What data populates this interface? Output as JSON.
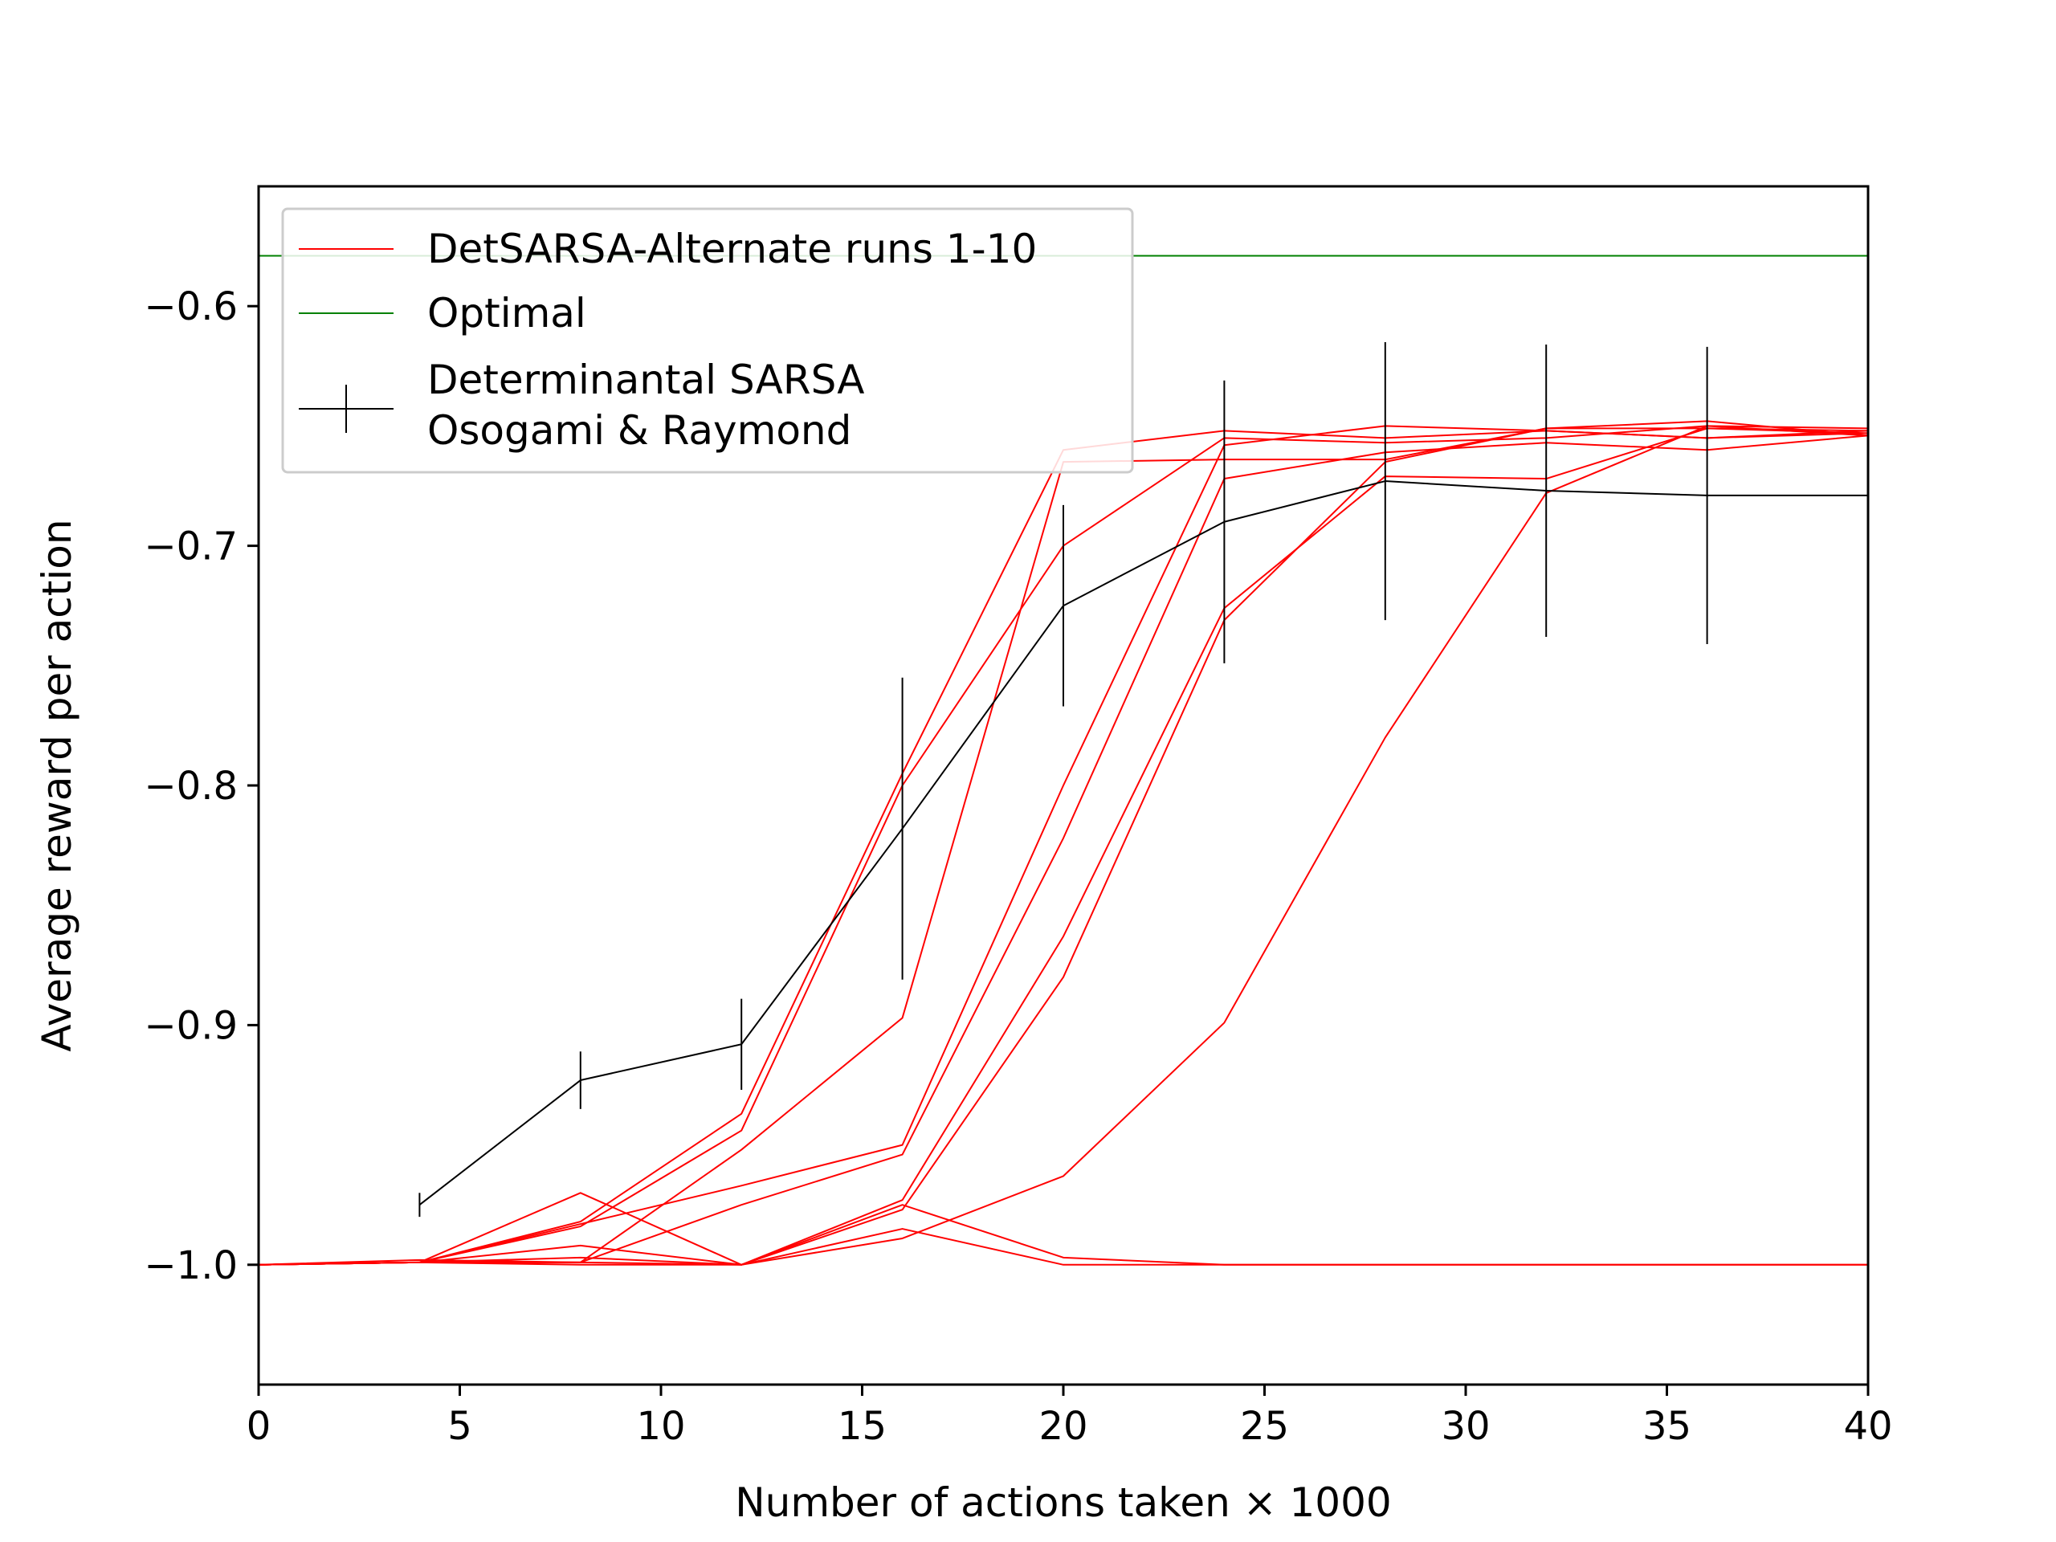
{
  "chart_data": {
    "type": "line",
    "title": "",
    "xlabel": "Number of actions taken × 1000",
    "ylabel": "Average reward per action",
    "xlim": [
      0,
      40
    ],
    "ylim": [
      -1.05,
      -0.55
    ],
    "xticks": [
      0,
      5,
      10,
      15,
      20,
      25,
      30,
      35,
      40
    ],
    "xtick_labels": [
      "0",
      "5",
      "10",
      "15",
      "20",
      "25",
      "30",
      "35",
      "40"
    ],
    "yticks": [
      -1.0,
      -0.9,
      -0.8,
      -0.7,
      -0.6
    ],
    "ytick_labels": [
      "−1.0",
      "−0.9",
      "−0.8",
      "−0.7",
      "−0.6"
    ],
    "grid": false,
    "legend_position": "top-left",
    "legend": [
      {
        "label": "DetSARSA-Alternate runs 1-10",
        "color": "#ff0000",
        "style": "line"
      },
      {
        "label": "Optimal",
        "color": "#008000",
        "style": "line"
      },
      {
        "label": "Determinantal SARSA",
        "label2": "Osogami & Raymond",
        "color": "#000000",
        "style": "errorbar"
      }
    ],
    "x": [
      0,
      4,
      8,
      12,
      16,
      20,
      24,
      28,
      32,
      36,
      40
    ],
    "runs": [
      {
        "color": "#ff0000",
        "values": [
          -1.0,
          -0.999,
          -0.982,
          -0.937,
          -0.795,
          -0.66,
          -0.652,
          -0.655,
          -0.652,
          -0.655,
          -0.653
        ]
      },
      {
        "color": "#ff0000",
        "values": [
          -1.0,
          -0.999,
          -0.984,
          -0.944,
          -0.8,
          -0.7,
          -0.655,
          -0.657,
          -0.655,
          -0.65,
          -0.654
        ]
      },
      {
        "color": "#ff0000",
        "values": [
          -1.0,
          -0.999,
          -0.999,
          -0.952,
          -0.897,
          -0.665,
          -0.664,
          -0.664,
          -0.651,
          -0.651,
          -0.653
        ]
      },
      {
        "color": "#ff0000",
        "values": [
          -1.0,
          -0.999,
          -0.983,
          -0.967,
          -0.95,
          -0.8,
          -0.658,
          -0.65,
          -0.652,
          -0.655,
          -0.652
        ]
      },
      {
        "color": "#ff0000",
        "values": [
          -1.0,
          -0.999,
          -0.999,
          -0.975,
          -0.954,
          -0.822,
          -0.672,
          -0.661,
          -0.657,
          -0.66,
          -0.654
        ]
      },
      {
        "color": "#ff0000",
        "values": [
          -1.0,
          -0.999,
          -0.997,
          -1.0,
          -0.973,
          -0.863,
          -0.726,
          -0.671,
          -0.672,
          -0.651,
          -0.652
        ]
      },
      {
        "color": "#ff0000",
        "values": [
          -1.0,
          -0.998,
          -0.999,
          -1.0,
          -0.977,
          -0.88,
          -0.731,
          -0.665,
          -0.651,
          -0.648,
          -0.654
        ]
      },
      {
        "color": "#ff0000",
        "values": [
          -1.0,
          -0.999,
          -1.0,
          -1.0,
          -0.989,
          -0.963,
          -0.899,
          -0.78,
          -0.678,
          -0.65,
          -0.651
        ]
      },
      {
        "color": "#ff0000",
        "values": [
          -1.0,
          -0.999,
          -0.97,
          -1.0,
          -0.985,
          -1.0,
          -1.0,
          -1.0,
          -1.0,
          -1.0,
          -1.0
        ]
      },
      {
        "color": "#ff0000",
        "values": [
          -1.0,
          -0.999,
          -0.992,
          -1.0,
          -0.975,
          -0.997,
          -1.0,
          -1.0,
          -1.0,
          -1.0,
          -1.0
        ]
      }
    ],
    "optimal": {
      "color": "#008000",
      "value": -0.579
    },
    "det_sarsa": {
      "color": "#000000",
      "x": [
        4,
        8,
        12,
        16,
        20,
        24,
        28,
        32,
        36,
        40
      ],
      "values": [
        -0.975,
        -0.923,
        -0.908,
        -0.818,
        -0.725,
        -0.69,
        -0.673,
        -0.677,
        -0.679,
        -0.679
      ],
      "errors": [
        0.005,
        0.012,
        0.019,
        0.063,
        0.042,
        0.059,
        0.058,
        0.061,
        0.062,
        null
      ]
    }
  }
}
